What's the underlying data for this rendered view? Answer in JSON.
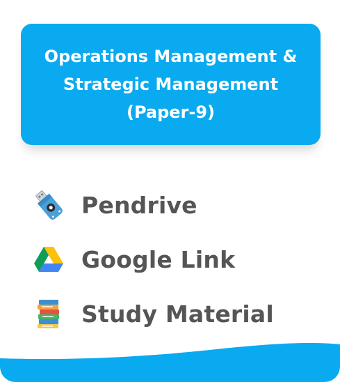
{
  "header": {
    "line1": "Operations Management &",
    "line2": "Strategic Management",
    "line3": "(Paper-9)"
  },
  "items": [
    {
      "label": "Pendrive",
      "icon": "pendrive-icon"
    },
    {
      "label": "Google Link",
      "icon": "google-drive-icon"
    },
    {
      "label": "Study Material",
      "icon": "books-icon"
    }
  ],
  "colors": {
    "accent": "#0aaaf0",
    "text": "#555555"
  }
}
